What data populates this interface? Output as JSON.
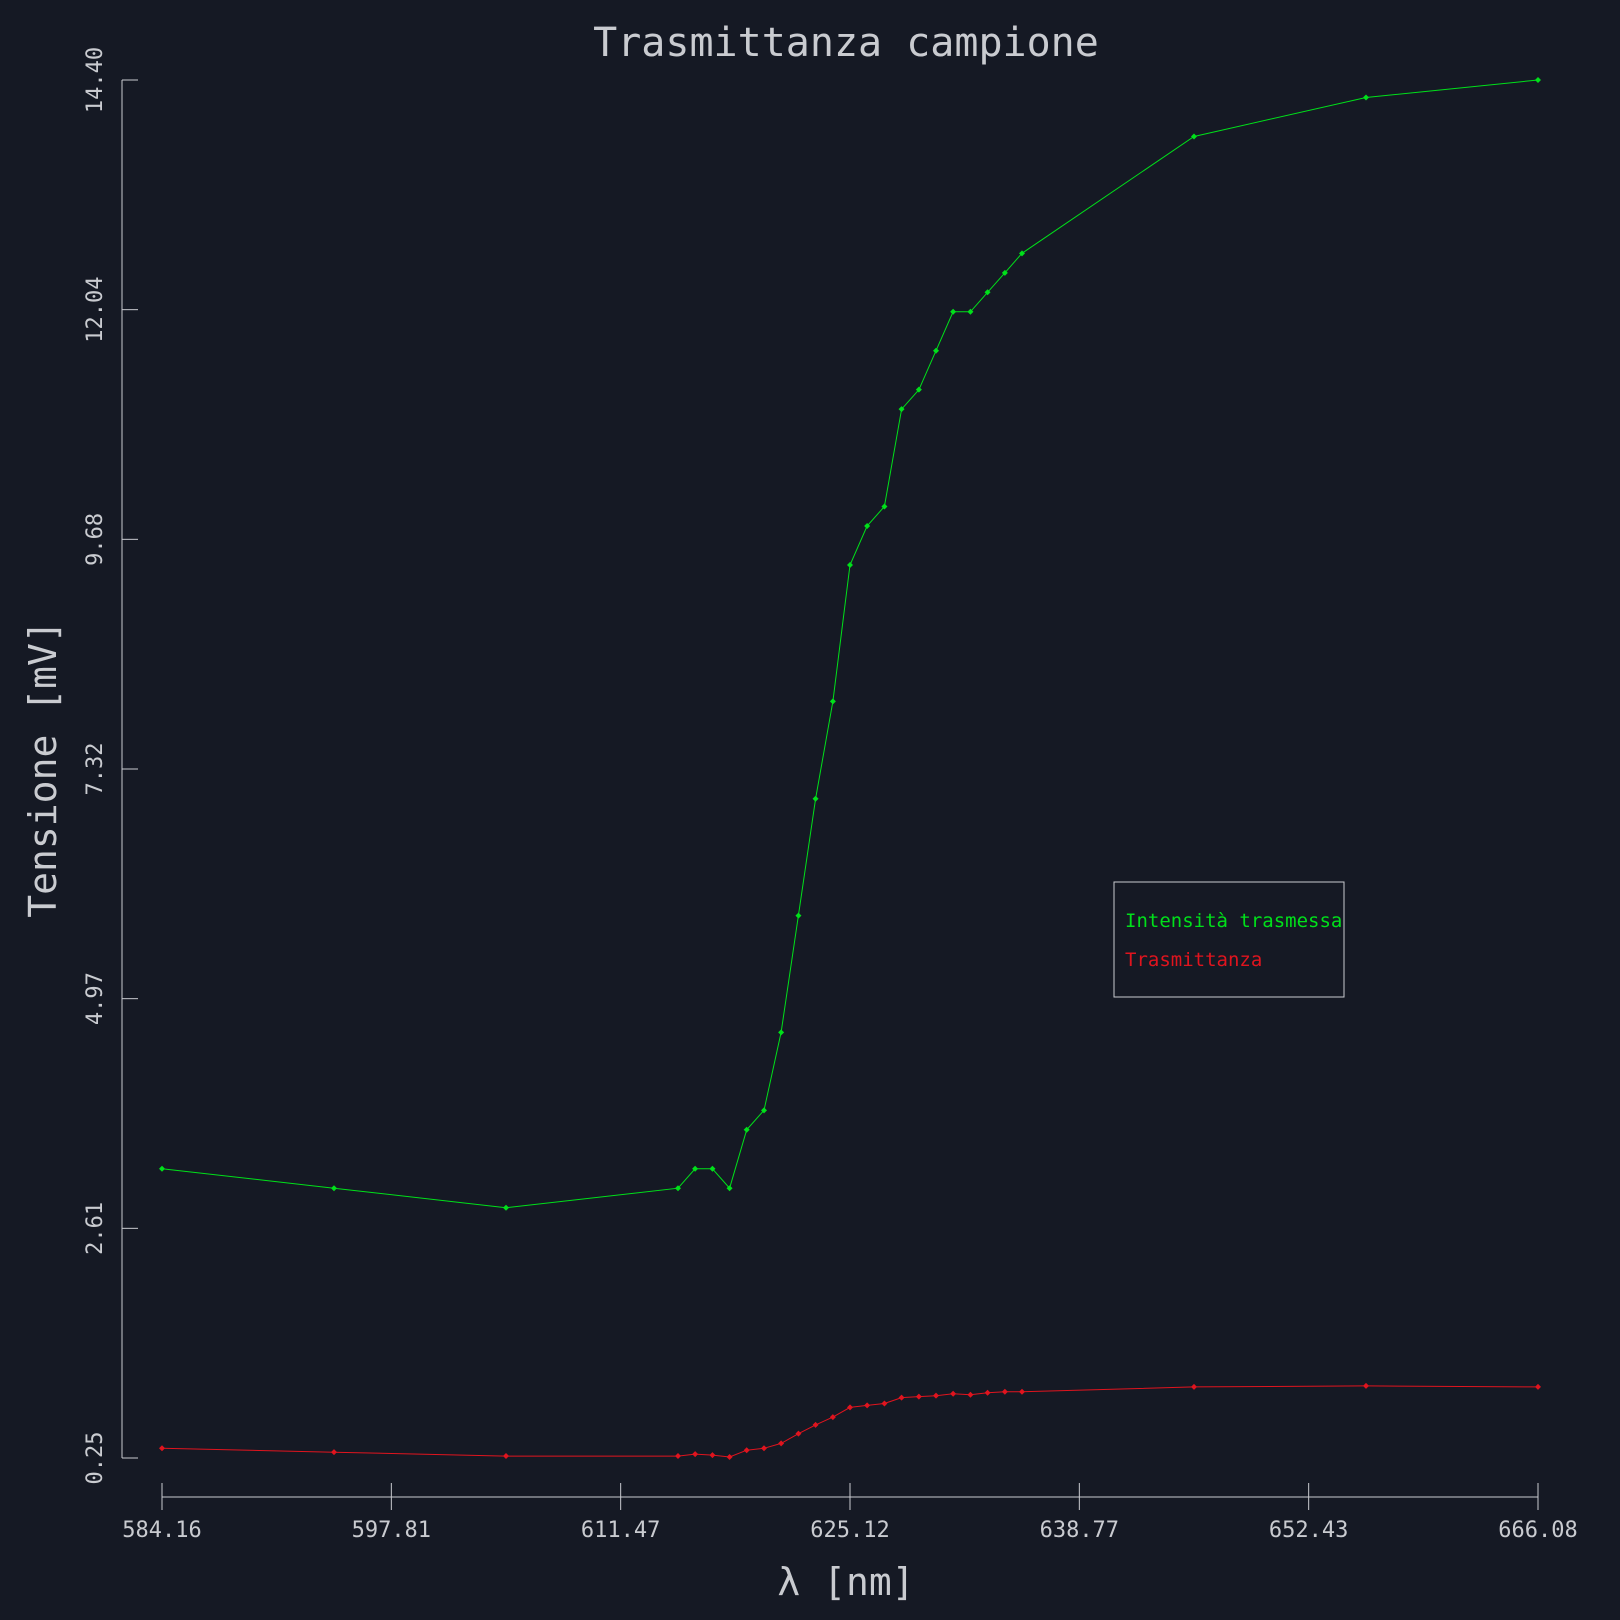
{
  "chart_data": {
    "type": "line",
    "title": "Trasmittanza campione",
    "xlabel": "λ [nm]",
    "ylabel": "Tensione [mV]",
    "xlim": [
      584.16,
      666.08
    ],
    "ylim": [
      0.25,
      14.4
    ],
    "x_ticks": [
      "584.16",
      "597.81",
      "611.47",
      "625.12",
      "638.77",
      "652.43",
      "666.08"
    ],
    "y_ticks": [
      "0.25",
      "2.61",
      "4.97",
      "7.32",
      "9.68",
      "12.04",
      "14.40"
    ],
    "grid": false,
    "legend_position": "center-right",
    "series": [
      {
        "name": "Intensità trasmessa",
        "color": "#00e01a",
        "x": [
          584.16,
          594.4,
          604.64,
          614.88,
          615.9,
          616.93,
          617.95,
          618.97,
          620.0,
          621.02,
          622.05,
          623.07,
          624.1,
          625.12,
          626.14,
          627.17,
          628.19,
          629.22,
          630.24,
          631.26,
          632.29,
          633.31,
          634.34,
          635.36,
          645.6,
          655.84,
          666.08
        ],
        "values": [
          3.22,
          3.02,
          2.82,
          3.02,
          3.22,
          3.22,
          3.02,
          3.62,
          3.82,
          4.62,
          5.82,
          7.02,
          8.02,
          9.42,
          9.82,
          10.02,
          11.02,
          11.22,
          11.62,
          12.02,
          12.02,
          12.22,
          12.42,
          12.62,
          13.82,
          14.22,
          14.4
        ]
      },
      {
        "name": "Trasmittanza",
        "color": "#e0141e",
        "x": [
          584.16,
          594.4,
          604.64,
          614.88,
          615.9,
          616.93,
          617.95,
          618.97,
          620.0,
          621.02,
          622.05,
          623.07,
          624.1,
          625.12,
          626.14,
          627.17,
          628.19,
          629.22,
          630.24,
          631.26,
          632.29,
          633.31,
          634.34,
          635.36,
          645.6,
          655.84,
          666.08
        ],
        "values": [
          0.35,
          0.31,
          0.27,
          0.27,
          0.29,
          0.28,
          0.26,
          0.33,
          0.35,
          0.4,
          0.5,
          0.59,
          0.67,
          0.77,
          0.79,
          0.81,
          0.87,
          0.88,
          0.89,
          0.91,
          0.9,
          0.92,
          0.93,
          0.93,
          0.98,
          0.99,
          0.98
        ]
      }
    ]
  },
  "colors": {
    "background": "#151924",
    "axis": "#c9cbd0",
    "text": "#c9cbd0"
  }
}
